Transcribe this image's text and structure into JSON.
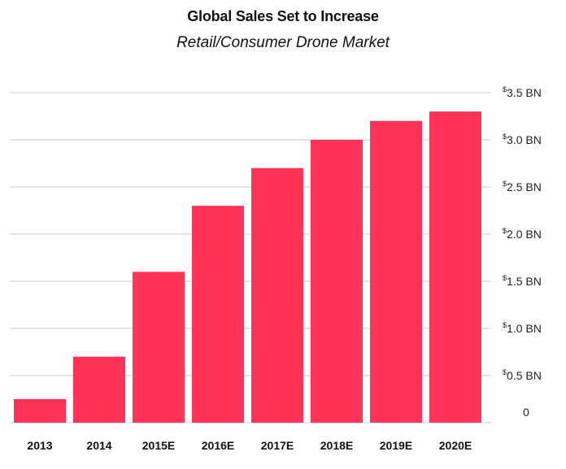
{
  "chart_data": {
    "type": "bar",
    "title": "Global Sales Set to Increase",
    "subtitle": "Retail/Consumer Drone Market",
    "categories": [
      "2013",
      "2014",
      "2015E",
      "2016E",
      "2017E",
      "2018E",
      "2019E",
      "2020E"
    ],
    "values": [
      0.25,
      0.7,
      1.6,
      2.3,
      2.7,
      3.0,
      3.2,
      3.3
    ],
    "ylim": [
      0,
      3.5
    ],
    "y_ticks": [
      {
        "value": 0,
        "label": "0",
        "prefix": ""
      },
      {
        "value": 0.5,
        "label": "0.5 BN",
        "prefix": "$"
      },
      {
        "value": 1.0,
        "label": "1.0 BN",
        "prefix": "$"
      },
      {
        "value": 1.5,
        "label": "1.5 BN",
        "prefix": "$"
      },
      {
        "value": 2.0,
        "label": "2.0 BN",
        "prefix": "$"
      },
      {
        "value": 2.5,
        "label": "2.5 BN",
        "prefix": "$"
      },
      {
        "value": 3.0,
        "label": "3.0 BN",
        "prefix": "$"
      },
      {
        "value": 3.5,
        "label": "3.5 BN",
        "prefix": "$"
      }
    ],
    "y_axis_position": "right",
    "grid": true,
    "bar_color": "#ff3358",
    "grid_color": "#c8c8c8"
  }
}
